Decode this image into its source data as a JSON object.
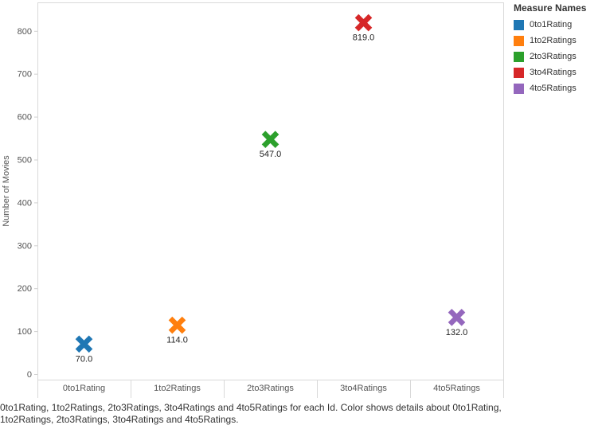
{
  "chart_data": {
    "type": "scatter",
    "categories": [
      "0to1Rating",
      "1to2Ratings",
      "2to3Ratings",
      "3to4Ratings",
      "4to5Ratings"
    ],
    "values": [
      70,
      114,
      547,
      819,
      132
    ],
    "data_labels": [
      "70.0",
      "114.0",
      "547.0",
      "819.0",
      "132.0"
    ],
    "colors": [
      "#1f77b4",
      "#ff7f0e",
      "#2ca02c",
      "#d62728",
      "#9467bd"
    ],
    "marker": "x",
    "ylabel": "Number of Movies",
    "ylim": [
      -12,
      870
    ],
    "yticks": [
      0,
      100,
      200,
      300,
      400,
      500,
      600,
      700,
      800
    ],
    "grid": false,
    "legend_position": "right"
  },
  "legend": {
    "title": "Measure Names",
    "items": [
      {
        "label": "0to1Rating",
        "color": "#1f77b4"
      },
      {
        "label": "1to2Ratings",
        "color": "#ff7f0e"
      },
      {
        "label": "2to3Ratings",
        "color": "#2ca02c"
      },
      {
        "label": "3to4Ratings",
        "color": "#d62728"
      },
      {
        "label": "4to5Ratings",
        "color": "#9467bd"
      }
    ]
  },
  "caption": {
    "line1": "0to1Rating, 1to2Ratings, 2to3Ratings, 3to4Ratings and 4to5Ratings for each Id.  Color shows details about 0to1Rating,",
    "line2": "1to2Ratings, 2to3Ratings, 3to4Ratings and 4to5Ratings."
  }
}
